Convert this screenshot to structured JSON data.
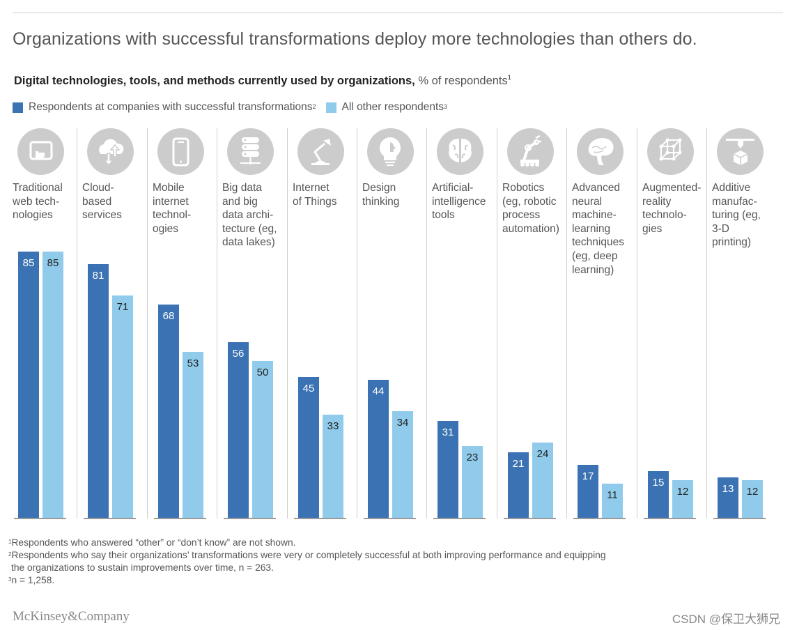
{
  "header": {
    "title": "Organizations with successful transformations deploy more technologies than others do.",
    "subtitle_bold": "Digital technologies, tools, and methods currently used by organizations,",
    "subtitle_unit": "% of respondents",
    "subtitle_sup": "1"
  },
  "legend": [
    {
      "label": "Respondents at companies with successful transformations",
      "sup": "2",
      "color": "#3b72b3"
    },
    {
      "label": "All other respondents",
      "sup": "3",
      "color": "#90cbeb"
    }
  ],
  "chart_data": {
    "type": "bar",
    "title": "Digital technologies, tools, and methods currently used by organizations, % of respondents",
    "xlabel": "",
    "ylabel": "% of respondents",
    "ylim": [
      0,
      85
    ],
    "grid": false,
    "legend_position": "top-left",
    "categories": [
      "Traditional web technologies",
      "Cloud-based services",
      "Mobile internet technologies",
      "Big data and big data architecture (eg, data lakes)",
      "Internet of Things",
      "Design thinking",
      "Artificial-intelligence tools",
      "Robotics (eg, robotic process automation)",
      "Advanced neural machine-learning techniques (eg, deep learning)",
      "Augmented-reality technologies",
      "Additive manufacturing (eg, 3-D printing)"
    ],
    "category_labels_display": [
      "Traditional\nweb tech-\nnologies",
      "Cloud-\nbased\nservices",
      "Mobile\ninternet\ntechnol-\nogies",
      "Big data\nand big\ndata archi-\ntecture (eg,\ndata lakes)",
      "Internet\nof Things",
      "Design\nthinking",
      "Artificial-\nintelligence\ntools",
      "Robotics\n(eg, robotic\nprocess\nautomation)",
      "Advanced\nneural\nmachine-\nlearning\ntechniques\n(eg, deep\nlearning)",
      "Augmented-\nreality\ntechnolo-\ngies",
      "Additive\nmanufac-\nturing (eg,\n3-D\nprinting)"
    ],
    "icons": [
      "touchscreen-icon",
      "cloud-sync-icon",
      "smartphone-icon",
      "server-stack-icon",
      "desk-lamp-icon",
      "lightbulb-head-icon",
      "brain-icon",
      "robot-arm-icon",
      "anatomical-brain-icon",
      "wireframe-cube-icon",
      "3d-printer-icon"
    ],
    "series": [
      {
        "name": "Respondents at companies with successful transformations",
        "color": "#3b72b3",
        "label_color": "#ffffff",
        "values": [
          85,
          81,
          68,
          56,
          45,
          44,
          31,
          21,
          17,
          15,
          13
        ]
      },
      {
        "name": "All other respondents",
        "color": "#90cbeb",
        "label_color": "#222222",
        "values": [
          85,
          71,
          53,
          50,
          33,
          34,
          23,
          24,
          11,
          12,
          12
        ]
      }
    ]
  },
  "footnotes": [
    {
      "sup": "1",
      "text": "Respondents who answered “other” or “don’t know” are not shown."
    },
    {
      "sup": "2",
      "text": "Respondents who say their organizations’ transformations were very or completely successful at both improving performance and equipping"
    },
    {
      "sup": "",
      "text": " the organizations to sustain improvements over time, n = 263."
    },
    {
      "sup": "3",
      "text": "n = 1,258."
    }
  ],
  "brand": "McKinsey&Company",
  "watermark": "CSDN @保卫大狮兄"
}
